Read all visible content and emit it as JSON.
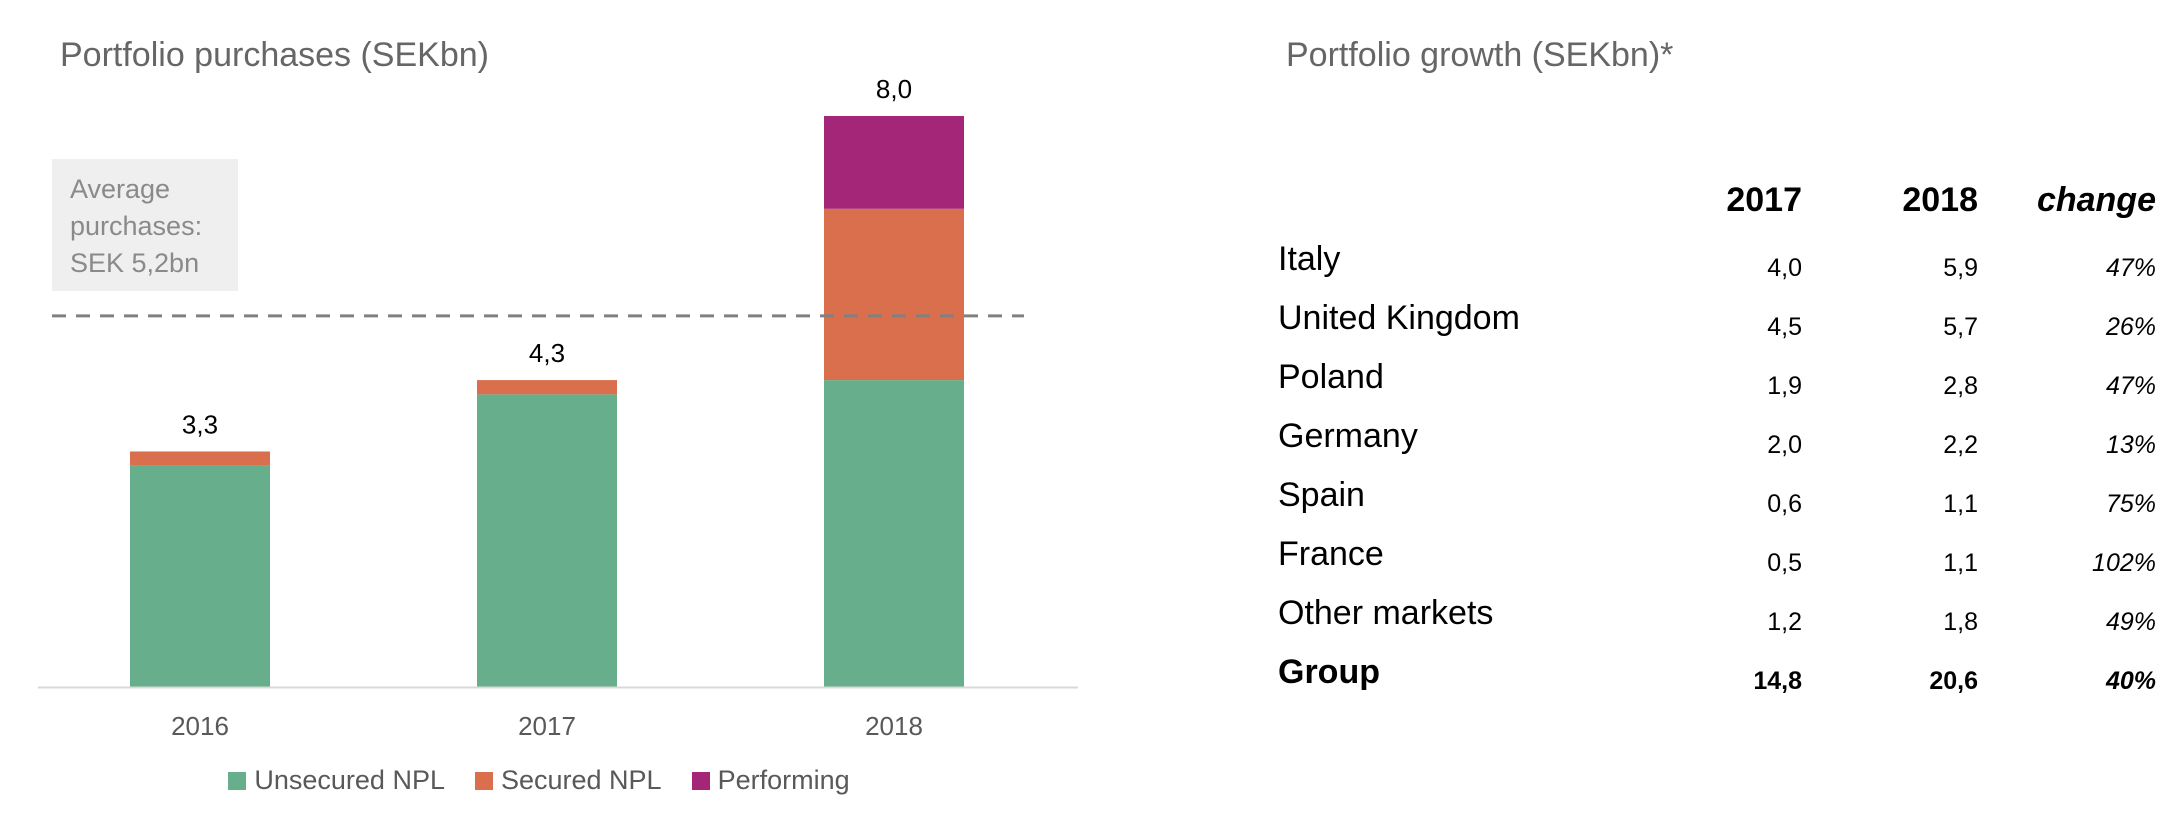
{
  "chart_data": {
    "type": "bar",
    "stacked": true,
    "title": "Portfolio purchases (SEKbn)",
    "categories": [
      "2016",
      "2017",
      "2018"
    ],
    "series": [
      {
        "name": "Unsecured NPL",
        "values": [
          3.1,
          4.1,
          4.3
        ],
        "color": "#67AE8D"
      },
      {
        "name": "Secured NPL",
        "values": [
          0.2,
          0.2,
          2.4
        ],
        "color": "#DA6F4E"
      },
      {
        "name": "Performing",
        "values": [
          0.0,
          0.0,
          1.3
        ],
        "color": "#A32679"
      }
    ],
    "totals": [
      "3,3",
      "4,3",
      "8,0"
    ],
    "total_values": [
      3.3,
      4.3,
      8.0
    ],
    "average_line": {
      "value": 5.2,
      "label_lines": [
        "Average",
        "purchases:",
        "SEK 5,2bn"
      ]
    },
    "ylim": [
      0,
      9.0
    ],
    "grid": false,
    "legend_position": "bottom",
    "xlabel": "",
    "ylabel": ""
  },
  "table": {
    "title": "Portfolio growth (SEKbn)*",
    "headers": [
      "",
      "2017",
      "2018",
      "change"
    ],
    "rows": [
      {
        "country": "Italy",
        "y2017": "4,0",
        "y2018": "5,9",
        "change": "47%"
      },
      {
        "country": "United Kingdom",
        "y2017": "4,5",
        "y2018": "5,7",
        "change": "26%"
      },
      {
        "country": "Poland",
        "y2017": "1,9",
        "y2018": "2,8",
        "change": "47%"
      },
      {
        "country": "Germany",
        "y2017": "2,0",
        "y2018": "2,2",
        "change": "13%"
      },
      {
        "country": "Spain",
        "y2017": "0,6",
        "y2018": "1,1",
        "change": "75%"
      },
      {
        "country": "France",
        "y2017": "0,5",
        "y2018": "1,1",
        "change": "102%"
      },
      {
        "country": "Other markets",
        "y2017": "1,2",
        "y2018": "1,8",
        "change": "49%"
      }
    ],
    "total": {
      "country": "Group",
      "y2017": "14,8",
      "y2018": "20,6",
      "change": "40%"
    }
  },
  "colors": {
    "axis": "#d9d9d9",
    "average_line": "#808080",
    "label_text": "#000000",
    "tick_text": "#595959"
  }
}
